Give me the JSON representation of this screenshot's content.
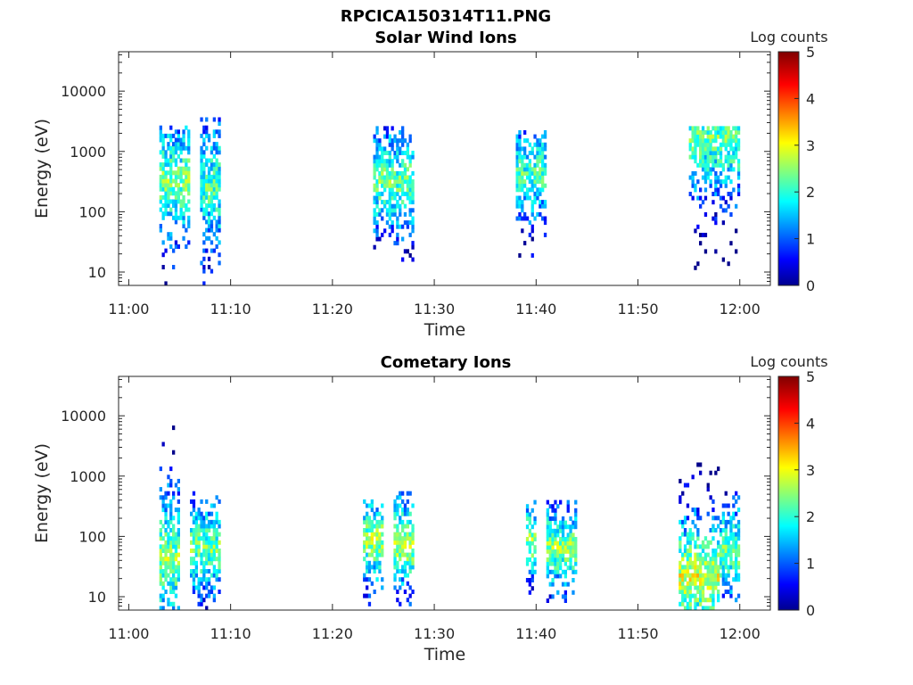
{
  "figure_title": "RPCICA150314T11.PNG",
  "chart_data": [
    {
      "type": "heatmap",
      "title": "Solar Wind Ions",
      "xlabel": "Time",
      "ylabel": "Energy (eV)",
      "xlim": [
        "10:59",
        "12:03"
      ],
      "ylim": [
        6,
        45000
      ],
      "yscale": "log",
      "x_ticks": [
        "11:00",
        "11:10",
        "11:20",
        "11:30",
        "11:40",
        "11:50",
        "12:00"
      ],
      "y_ticks": [
        "10",
        "100",
        "1000",
        "10000"
      ],
      "colorbar": {
        "label": "Log counts",
        "min": 0,
        "max": 5,
        "ticks": [
          "0",
          "1",
          "2",
          "3",
          "4",
          "5"
        ],
        "colormap": "jet"
      },
      "bursts": [
        {
          "start": "11:03",
          "end": "11:06",
          "e_low": 6,
          "e_high": 2500,
          "peak_energy": 300,
          "peak_log_counts": 2.5
        },
        {
          "start": "11:07",
          "end": "11:09",
          "e_low": 6,
          "e_high": 3500,
          "peak_energy": 250,
          "peak_log_counts": 2.3
        },
        {
          "start": "11:24",
          "end": "11:28",
          "e_low": 15,
          "e_high": 2500,
          "peak_energy": 300,
          "peak_log_counts": 2.4
        },
        {
          "start": "11:38",
          "end": "11:41",
          "e_low": 15,
          "e_high": 2000,
          "peak_energy": 400,
          "peak_log_counts": 2.2
        },
        {
          "start": "11:55",
          "end": "12:00",
          "e_low": 8,
          "e_high": 2500,
          "peak_energy": 1500,
          "peak_log_counts": 2.4
        }
      ]
    },
    {
      "type": "heatmap",
      "title": "Cometary Ions",
      "xlabel": "Time",
      "ylabel": "Energy (eV)",
      "xlim": [
        "10:59",
        "12:03"
      ],
      "ylim": [
        6,
        45000
      ],
      "yscale": "log",
      "x_ticks": [
        "11:00",
        "11:10",
        "11:20",
        "11:30",
        "11:40",
        "11:50",
        "12:00"
      ],
      "y_ticks": [
        "10",
        "100",
        "1000",
        "10000"
      ],
      "colorbar": {
        "label": "Log counts",
        "min": 0,
        "max": 5,
        "ticks": [
          "0",
          "1",
          "2",
          "3",
          "4",
          "5"
        ],
        "colormap": "jet"
      },
      "bursts": [
        {
          "start": "11:03",
          "end": "11:05",
          "e_low": 6,
          "e_high": 6000,
          "peak_energy": 40,
          "peak_log_counts": 2.6
        },
        {
          "start": "11:06",
          "end": "11:09",
          "e_low": 6,
          "e_high": 500,
          "peak_energy": 60,
          "peak_log_counts": 2.5
        },
        {
          "start": "11:23",
          "end": "11:25",
          "e_low": 6,
          "e_high": 400,
          "peak_energy": 80,
          "peak_log_counts": 2.7
        },
        {
          "start": "11:26",
          "end": "11:28",
          "e_low": 6,
          "e_high": 500,
          "peak_energy": 70,
          "peak_log_counts": 2.8
        },
        {
          "start": "11:39",
          "end": "11:40",
          "e_low": 8,
          "e_high": 400,
          "peak_energy": 80,
          "peak_log_counts": 2.6
        },
        {
          "start": "11:41",
          "end": "11:44",
          "e_low": 8,
          "e_high": 400,
          "peak_energy": 60,
          "peak_log_counts": 2.6
        },
        {
          "start": "11:54",
          "end": "11:58",
          "e_low": 6,
          "e_high": 1500,
          "peak_energy": 20,
          "peak_log_counts": 3.0
        },
        {
          "start": "11:58",
          "end": "12:00",
          "e_low": 6,
          "e_high": 600,
          "peak_energy": 50,
          "peak_log_counts": 2.5
        }
      ]
    }
  ]
}
